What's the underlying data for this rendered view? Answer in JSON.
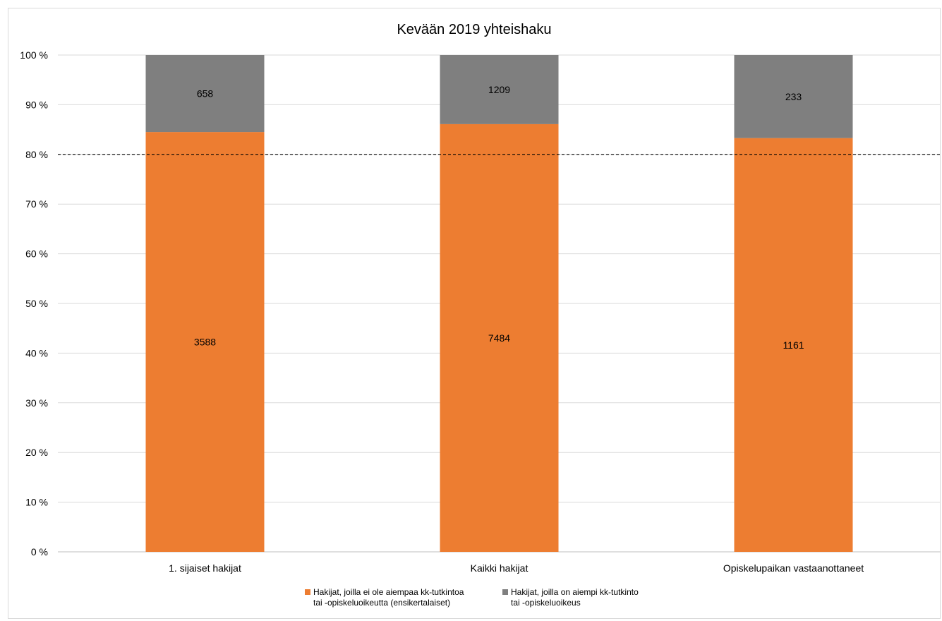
{
  "chart_data": {
    "type": "bar",
    "stacked": "percent",
    "title": "Kevään 2019 yhteishaku",
    "categories": [
      "1. sijaiset hakijat",
      "Kaikki hakijat",
      "Opiskelupaikan vastaanottaneet"
    ],
    "series": [
      {
        "name_lines": [
          "Hakijat, joilla ei ole aiempaa kk-tutkintoa",
          "tai -opiskeluoikeutta (ensikertalaiset)"
        ],
        "values": [
          3588,
          7484,
          1161
        ],
        "color": "#ed7d31"
      },
      {
        "name_lines": [
          "Hakijat, joilla on aiempi kk-tutkinto",
          "tai -opiskeluoikeus"
        ],
        "values": [
          658,
          1209,
          233
        ],
        "color": "#7f7f7f"
      }
    ],
    "yticks": [
      "0 %",
      "10 %",
      "20 %",
      "30 %",
      "40 %",
      "50 %",
      "60 %",
      "70 %",
      "80 %",
      "90 %",
      "100 %"
    ],
    "ylim": [
      0,
      100
    ],
    "reference_line": 80,
    "grid": true,
    "legend": "bottom"
  }
}
